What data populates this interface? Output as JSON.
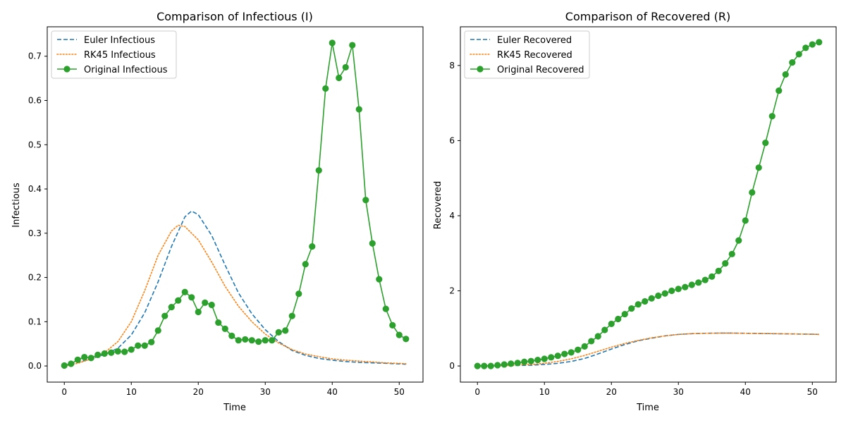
{
  "colors": {
    "euler": "#1f77b4",
    "rk45": "#ff7f0e",
    "original": "#2ca02c"
  },
  "chart_data": [
    {
      "type": "line",
      "title": "Comparison of Infectious (I)",
      "xlabel": "Time",
      "ylabel": "Infectious",
      "xlim": [
        -2.55,
        53.55
      ],
      "ylim": [
        -0.0365,
        0.7665
      ],
      "xticks": [
        "0",
        "10",
        "20",
        "30",
        "40",
        "50"
      ],
      "xtick_values": [
        0,
        10,
        20,
        30,
        40,
        50
      ],
      "yticks": [
        "0.0",
        "0.1",
        "0.2",
        "0.3",
        "0.4",
        "0.5",
        "0.6",
        "0.7"
      ],
      "ytick_values": [
        0,
        0.1,
        0.2,
        0.3,
        0.4,
        0.5,
        0.6,
        0.7
      ],
      "legend_position": "top-left",
      "series": [
        {
          "name": "Euler Infectious",
          "style": "dashed",
          "x": [
            0,
            2,
            4,
            6,
            8,
            10,
            12,
            14,
            16,
            18,
            19,
            20,
            22,
            24,
            26,
            28,
            30,
            32,
            34,
            36,
            38,
            40,
            42,
            44,
            46,
            48,
            51
          ],
          "y": [
            0,
            0.008,
            0.016,
            0.026,
            0.04,
            0.07,
            0.12,
            0.19,
            0.27,
            0.337,
            0.35,
            0.342,
            0.295,
            0.228,
            0.165,
            0.118,
            0.082,
            0.055,
            0.035,
            0.024,
            0.017,
            0.013,
            0.01,
            0.008,
            0.007,
            0.006,
            0.004
          ]
        },
        {
          "name": "RK45 Infectious",
          "style": "dotted",
          "x": [
            0,
            2,
            4,
            6,
            8,
            10,
            12,
            14,
            16,
            17,
            18,
            20,
            22,
            24,
            26,
            28,
            30,
            32,
            34,
            36,
            38,
            40,
            42,
            44,
            46,
            48,
            51
          ],
          "y": [
            0,
            0.006,
            0.016,
            0.03,
            0.055,
            0.1,
            0.17,
            0.25,
            0.305,
            0.318,
            0.315,
            0.285,
            0.235,
            0.18,
            0.135,
            0.1,
            0.072,
            0.052,
            0.037,
            0.027,
            0.021,
            0.016,
            0.013,
            0.011,
            0.009,
            0.007,
            0.005
          ]
        },
        {
          "name": "Original Infectious",
          "style": "solid-markers",
          "x": [
            0,
            1,
            2,
            3,
            4,
            5,
            6,
            7,
            8,
            9,
            10,
            11,
            12,
            13,
            14,
            15,
            16,
            17,
            18,
            19,
            20,
            21,
            22,
            23,
            24,
            25,
            26,
            27,
            28,
            29,
            30,
            31,
            32,
            33,
            34,
            35,
            36,
            37,
            38,
            39,
            40,
            41,
            42,
            43,
            44,
            45,
            46,
            47,
            48,
            49,
            50,
            51
          ],
          "y": [
            0.001,
            0.005,
            0.014,
            0.02,
            0.018,
            0.025,
            0.028,
            0.03,
            0.033,
            0.032,
            0.037,
            0.046,
            0.046,
            0.054,
            0.08,
            0.113,
            0.133,
            0.148,
            0.167,
            0.155,
            0.122,
            0.143,
            0.138,
            0.098,
            0.084,
            0.068,
            0.058,
            0.06,
            0.058,
            0.055,
            0.058,
            0.058,
            0.076,
            0.08,
            0.113,
            0.163,
            0.23,
            0.27,
            0.442,
            0.627,
            0.73,
            0.651,
            0.675,
            0.725,
            0.58,
            0.375,
            0.277,
            0.196,
            0.129,
            0.092,
            0.07,
            0.061
          ]
        }
      ]
    },
    {
      "type": "line",
      "title": "Comparison of Recovered (R)",
      "xlabel": "Time",
      "ylabel": "Recovered",
      "xlim": [
        -2.55,
        53.55
      ],
      "ylim": [
        -0.43,
        9.03
      ],
      "xticks": [
        "0",
        "10",
        "20",
        "30",
        "40",
        "50"
      ],
      "xtick_values": [
        0,
        10,
        20,
        30,
        40,
        50
      ],
      "yticks": [
        "0",
        "2",
        "4",
        "6",
        "8"
      ],
      "ytick_values": [
        0,
        2,
        4,
        6,
        8
      ],
      "legend_position": "top-left",
      "series": [
        {
          "name": "Euler Recovered",
          "style": "dashed",
          "x": [
            0,
            4,
            8,
            10,
            12,
            14,
            16,
            18,
            20,
            22,
            24,
            26,
            28,
            30,
            32,
            34,
            36,
            38,
            40,
            42,
            44,
            46,
            48,
            50,
            51
          ],
          "y": [
            0,
            0.005,
            0.02,
            0.04,
            0.07,
            0.12,
            0.2,
            0.32,
            0.45,
            0.57,
            0.67,
            0.74,
            0.8,
            0.84,
            0.86,
            0.87,
            0.875,
            0.875,
            0.87,
            0.865,
            0.86,
            0.855,
            0.85,
            0.845,
            0.84
          ]
        },
        {
          "name": "RK45 Recovered",
          "style": "dotted",
          "x": [
            0,
            4,
            8,
            10,
            12,
            14,
            16,
            18,
            20,
            22,
            24,
            26,
            28,
            30,
            32,
            34,
            36,
            38,
            40,
            42,
            44,
            46,
            48,
            50,
            51
          ],
          "y": [
            0,
            0.01,
            0.04,
            0.07,
            0.12,
            0.19,
            0.28,
            0.39,
            0.5,
            0.6,
            0.68,
            0.75,
            0.8,
            0.84,
            0.86,
            0.87,
            0.875,
            0.875,
            0.87,
            0.865,
            0.86,
            0.855,
            0.85,
            0.845,
            0.84
          ]
        },
        {
          "name": "Original Recovered",
          "style": "solid-markers",
          "x": [
            0,
            1,
            2,
            3,
            4,
            5,
            6,
            7,
            8,
            9,
            10,
            11,
            12,
            13,
            14,
            15,
            16,
            17,
            18,
            19,
            20,
            21,
            22,
            23,
            24,
            25,
            26,
            27,
            28,
            29,
            30,
            31,
            32,
            33,
            34,
            35,
            36,
            37,
            38,
            39,
            40,
            41,
            42,
            43,
            44,
            45,
            46,
            47,
            48,
            49,
            50,
            51
          ],
          "y": [
            0,
            0,
            0,
            0.02,
            0.04,
            0.06,
            0.08,
            0.11,
            0.13,
            0.16,
            0.19,
            0.23,
            0.27,
            0.32,
            0.36,
            0.43,
            0.52,
            0.66,
            0.79,
            0.96,
            1.12,
            1.25,
            1.38,
            1.53,
            1.64,
            1.72,
            1.8,
            1.87,
            1.93,
            2.0,
            2.05,
            2.1,
            2.16,
            2.22,
            2.29,
            2.38,
            2.53,
            2.73,
            2.98,
            3.34,
            3.87,
            4.62,
            5.28,
            5.94,
            6.65,
            7.33,
            7.76,
            8.08,
            8.3,
            8.47,
            8.56,
            8.62
          ]
        }
      ]
    }
  ]
}
